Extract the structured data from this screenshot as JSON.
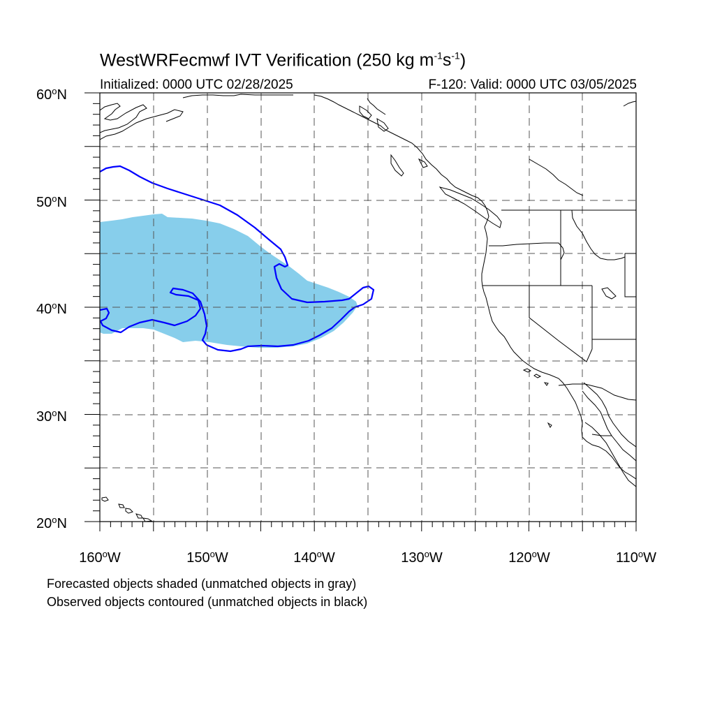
{
  "title": {
    "model": "WestWRFecmwf",
    "text": "IVT Verification",
    "threshold": "250",
    "units_prefix": "kg m",
    "units_exp1": "-1",
    "units_mid": "s",
    "units_exp2": "-1"
  },
  "subtitle": {
    "initialized": "Initialized: 0000 UTC 02/28/2025",
    "valid": "F-120: Valid: 0000 UTC 03/05/2025"
  },
  "map": {
    "extent": {
      "lon_min": -160,
      "lon_max": -110,
      "lat_min": 20,
      "lat_max": 60
    },
    "lat_labels": [
      {
        "lat": 60,
        "num": "60",
        "hemi": "N"
      },
      {
        "lat": 50,
        "num": "50",
        "hemi": "N"
      },
      {
        "lat": 40,
        "num": "40",
        "hemi": "N"
      },
      {
        "lat": 30,
        "num": "30",
        "hemi": "N"
      },
      {
        "lat": 20,
        "num": "20",
        "hemi": "N"
      }
    ],
    "lon_labels": [
      {
        "lon": -160,
        "num": "160",
        "hemi": "W"
      },
      {
        "lon": -150,
        "num": "150",
        "hemi": "W"
      },
      {
        "lon": -140,
        "num": "140",
        "hemi": "W"
      },
      {
        "lon": -130,
        "num": "130",
        "hemi": "W"
      },
      {
        "lon": -120,
        "num": "120",
        "hemi": "W"
      },
      {
        "lon": -110,
        "num": "110",
        "hemi": "W"
      }
    ],
    "grid_style": "dashed",
    "colors": {
      "forecast_fill": "#87ceeb",
      "observed_contour": "#0000ff",
      "coastline": "#000000",
      "grid": "#555555"
    }
  },
  "notes": {
    "line1": "Forecasted objects shaded (unmatched objects in gray)",
    "line2": "Observed objects contoured (unmatched objects in black)"
  }
}
